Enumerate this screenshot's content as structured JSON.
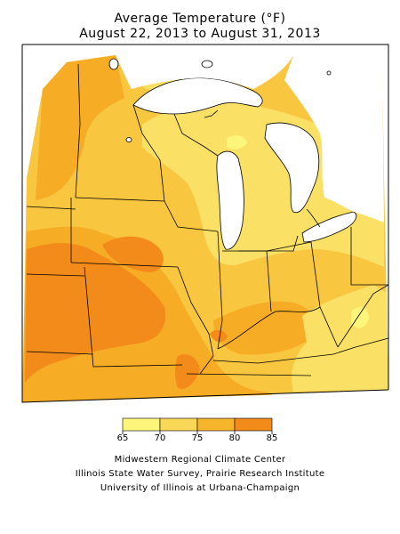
{
  "title_line1": "Average Temperature (°F)",
  "title_line2": "August 22, 2013 to August 31, 2013",
  "legend": {
    "ticks": [
      "65",
      "70",
      "75",
      "80",
      "85"
    ],
    "colors": [
      "#fdf67b",
      "#f9d757",
      "#f7b52c",
      "#f28b1a"
    ]
  },
  "zone_colors": {
    "z70": "#fbe066",
    "z75": "#f9c640",
    "z80": "#f7ac26",
    "z85": "#f28b1a",
    "z65": "#fdf67b"
  },
  "credits": {
    "line1": "Midwestern Regional Climate Center",
    "line2": "Illinois State Water Survey, Prairie Research Institute",
    "line3": "University of Illinois at Urbana-Champaign"
  }
}
